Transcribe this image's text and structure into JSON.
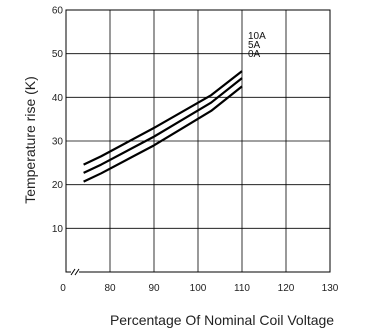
{
  "chart_data": {
    "type": "line",
    "xlabel": "Percentage Of Nominal Coil Voltage",
    "ylabel": "Temperature rise (K)",
    "xlim": [
      70,
      130
    ],
    "ylim": [
      0,
      60
    ],
    "x_ticks": [
      0,
      80,
      90,
      100,
      110,
      120,
      130
    ],
    "x_tick_labels": [
      "0",
      "80",
      "90",
      "100",
      "110",
      "120",
      "130"
    ],
    "y_ticks": [
      10,
      20,
      30,
      40,
      50,
      60
    ],
    "y_tick_labels": [
      "10",
      "20",
      "30",
      "40",
      "50",
      "60"
    ],
    "grid": true,
    "axis_break": true,
    "series": [
      {
        "name": "10A",
        "x": [
          74,
          78,
          90,
          103,
          110
        ],
        "y": [
          24.6,
          26.5,
          33,
          40.5,
          46
        ]
      },
      {
        "name": "5A",
        "x": [
          74,
          78,
          90,
          103,
          110
        ],
        "y": [
          22.7,
          24.6,
          31,
          38.8,
          44.4
        ]
      },
      {
        "name": "0A",
        "x": [
          74,
          78,
          90,
          103,
          110
        ],
        "y": [
          20.7,
          22.6,
          29,
          36.9,
          42.5
        ]
      }
    ]
  }
}
